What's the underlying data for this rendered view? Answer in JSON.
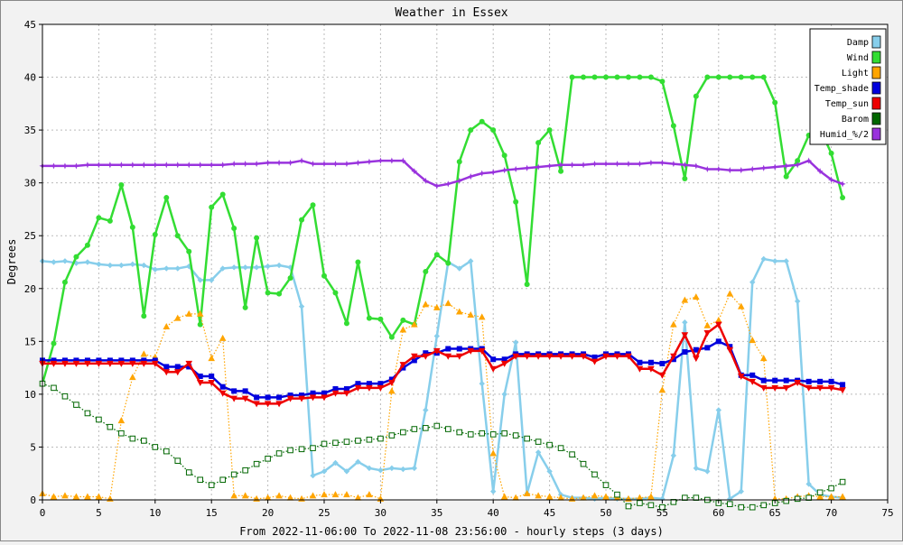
{
  "chart_data": {
    "type": "line",
    "title": "Weather in Essex",
    "xlabel": "From 2022-11-06:00 To 2022-11-08 23:56:00 - hourly steps (3 days)",
    "ylabel": "Degrees",
    "xlim": [
      0,
      75
    ],
    "ylim": [
      0,
      45
    ],
    "x_ticks": [
      0,
      5,
      10,
      15,
      20,
      25,
      30,
      35,
      40,
      45,
      50,
      55,
      60,
      65,
      70,
      75
    ],
    "y_ticks": [
      0,
      5,
      10,
      15,
      20,
      25,
      30,
      35,
      40,
      45
    ],
    "grid": true,
    "legend_position": "top-right",
    "x": [
      0,
      1,
      2,
      3,
      4,
      5,
      6,
      7,
      8,
      9,
      10,
      11,
      12,
      13,
      14,
      15,
      16,
      17,
      18,
      19,
      20,
      21,
      22,
      23,
      24,
      25,
      26,
      27,
      28,
      29,
      30,
      31,
      32,
      33,
      34,
      35,
      36,
      37,
      38,
      39,
      40,
      41,
      42,
      43,
      44,
      45,
      46,
      47,
      48,
      49,
      50,
      51,
      52,
      53,
      54,
      55,
      56,
      57,
      58,
      59,
      60,
      61,
      62,
      63,
      64,
      65,
      66,
      67,
      68,
      69,
      70,
      71
    ],
    "series": [
      {
        "name": "Damp",
        "color": "#87ceeb",
        "marker": "diamond",
        "line": "solid",
        "width": 2.5,
        "values": [
          22.6,
          22.5,
          22.6,
          22.4,
          22.5,
          22.3,
          22.2,
          22.2,
          22.3,
          22.2,
          21.8,
          21.9,
          21.9,
          22.1,
          20.8,
          20.8,
          21.9,
          22.0,
          22.0,
          22.0,
          22.1,
          22.2,
          22.0,
          18.3,
          2.3,
          2.7,
          3.5,
          2.7,
          3.6,
          3.0,
          2.8,
          3.0,
          2.9,
          3.0,
          8.5,
          15.5,
          22.5,
          21.9,
          22.6,
          11.0,
          0.8,
          10.0,
          14.9,
          0.6,
          4.5,
          2.7,
          0.5,
          0.2,
          0.2,
          0.1,
          0.2,
          0.1,
          0.1,
          0.1,
          0.2,
          0.1,
          4.2,
          16.8,
          3.0,
          2.7,
          8.5,
          0.1,
          0.8,
          20.6,
          22.8,
          22.6,
          22.6,
          18.8,
          1.5,
          0.5,
          0.3,
          0.2
        ]
      },
      {
        "name": "Wind",
        "color": "#33dd33",
        "marker": "circle",
        "line": "solid",
        "width": 2.5,
        "values": [
          11.0,
          14.8,
          20.6,
          23.0,
          24.1,
          26.7,
          26.4,
          29.8,
          25.8,
          17.4,
          25.1,
          28.6,
          25.0,
          23.5,
          16.6,
          27.7,
          28.9,
          25.7,
          18.2,
          24.8,
          19.6,
          19.5,
          21.0,
          26.5,
          27.9,
          21.2,
          19.6,
          16.7,
          22.5,
          17.2,
          17.1,
          15.4,
          17.0,
          16.6,
          21.6,
          23.2,
          22.4,
          32.0,
          35.0,
          35.8,
          35.0,
          32.6,
          28.2,
          20.4,
          33.8,
          35.0,
          31.1,
          40.0,
          40.0,
          40.0,
          40.0,
          40.0,
          40.0,
          40.0,
          40.0,
          39.6,
          35.4,
          30.4,
          38.2,
          40.0,
          40.0,
          40.0,
          40.0,
          40.0,
          40.0,
          37.6,
          30.6,
          32.1,
          34.5,
          35.1,
          32.8,
          28.6
        ]
      },
      {
        "name": "Light",
        "color": "#ffa500",
        "marker": "triangle",
        "line": "dotted",
        "width": 1.2,
        "values": [
          0.6,
          0.3,
          0.4,
          0.3,
          0.3,
          0.3,
          0.1,
          7.5,
          11.6,
          13.8,
          13.5,
          16.4,
          17.2,
          17.6,
          17.6,
          13.4,
          15.3,
          0.4,
          0.4,
          0.1,
          0.2,
          0.4,
          0.2,
          0.1,
          0.4,
          0.5,
          0.5,
          0.5,
          0.2,
          0.5,
          0.1,
          10.3,
          16.1,
          16.6,
          18.5,
          18.2,
          18.6,
          17.8,
          17.5,
          17.3,
          4.4,
          0.3,
          0.2,
          0.6,
          0.4,
          0.3,
          0.2,
          0.1,
          0.2,
          0.4,
          0.3,
          0.2,
          0.1,
          0.2,
          0.3,
          10.4,
          16.6,
          18.9,
          19.2,
          16.5,
          17.0,
          19.5,
          18.3,
          15.1,
          13.4,
          0.1,
          0.1,
          0.3,
          0.4,
          0.3,
          0.3,
          0.3
        ]
      },
      {
        "name": "Temp_shade",
        "color": "#0000dd",
        "marker": "square",
        "line": "solid",
        "width": 2.5,
        "values": [
          13.2,
          13.2,
          13.2,
          13.2,
          13.2,
          13.2,
          13.2,
          13.2,
          13.2,
          13.2,
          13.2,
          12.6,
          12.6,
          12.6,
          11.7,
          11.7,
          10.7,
          10.3,
          10.3,
          9.7,
          9.7,
          9.7,
          9.9,
          9.9,
          10.1,
          10.1,
          10.5,
          10.5,
          11.0,
          11.0,
          11.0,
          11.4,
          12.5,
          13.2,
          13.9,
          13.9,
          14.3,
          14.3,
          14.3,
          14.3,
          13.3,
          13.3,
          13.8,
          13.8,
          13.8,
          13.8,
          13.8,
          13.8,
          13.8,
          13.5,
          13.8,
          13.8,
          13.8,
          13.0,
          13.0,
          12.9,
          13.3,
          14.0,
          14.2,
          14.4,
          15.0,
          14.5,
          11.8,
          11.8,
          11.3,
          11.3,
          11.3,
          11.3,
          11.2,
          11.2,
          11.2,
          10.9
        ]
      },
      {
        "name": "Temp_sun",
        "color": "#ee0000",
        "marker": "triangle-down",
        "line": "solid",
        "width": 2.5,
        "values": [
          12.9,
          12.9,
          12.9,
          12.9,
          12.9,
          12.9,
          12.9,
          12.9,
          12.9,
          12.9,
          12.9,
          12.1,
          12.1,
          12.9,
          11.1,
          11.1,
          10.1,
          9.6,
          9.6,
          9.1,
          9.1,
          9.1,
          9.6,
          9.6,
          9.7,
          9.7,
          10.1,
          10.1,
          10.6,
          10.6,
          10.6,
          11.1,
          12.8,
          13.6,
          13.6,
          14.1,
          13.6,
          13.6,
          14.1,
          14.1,
          12.4,
          12.9,
          13.6,
          13.6,
          13.6,
          13.6,
          13.6,
          13.6,
          13.6,
          13.1,
          13.6,
          13.6,
          13.6,
          12.4,
          12.4,
          11.8,
          13.6,
          15.6,
          13.4,
          15.8,
          16.6,
          14.2,
          11.7,
          11.2,
          10.6,
          10.6,
          10.6,
          11.1,
          10.6,
          10.6,
          10.6,
          10.4
        ]
      },
      {
        "name": "Barom",
        "color": "#006600",
        "marker": "open-square",
        "line": "dotted",
        "width": 1.2,
        "values": [
          11.0,
          10.6,
          9.8,
          9.0,
          8.2,
          7.6,
          6.9,
          6.3,
          5.8,
          5.6,
          5.0,
          4.6,
          3.7,
          2.6,
          1.9,
          1.4,
          1.9,
          2.4,
          2.8,
          3.4,
          3.9,
          4.4,
          4.7,
          4.8,
          4.9,
          5.3,
          5.4,
          5.5,
          5.6,
          5.7,
          5.8,
          6.1,
          6.4,
          6.7,
          6.8,
          7.0,
          6.7,
          6.4,
          6.2,
          6.3,
          6.2,
          6.3,
          6.1,
          5.8,
          5.5,
          5.2,
          4.9,
          4.3,
          3.4,
          2.4,
          1.4,
          0.5,
          -0.6,
          -0.3,
          -0.5,
          -0.7,
          -0.2,
          0.2,
          0.2,
          0.0,
          -0.3,
          -0.4,
          -0.7,
          -0.7,
          -0.5,
          -0.3,
          -0.1,
          0.1,
          0.2,
          0.7,
          1.1,
          1.7
        ]
      },
      {
        "name": "Humid_%/2",
        "color": "#9933dd",
        "marker": "star",
        "line": "solid",
        "width": 2.5,
        "values": [
          31.6,
          31.6,
          31.6,
          31.6,
          31.7,
          31.7,
          31.7,
          31.7,
          31.7,
          31.7,
          31.7,
          31.7,
          31.7,
          31.7,
          31.7,
          31.7,
          31.7,
          31.8,
          31.8,
          31.8,
          31.9,
          31.9,
          31.9,
          32.1,
          31.8,
          31.8,
          31.8,
          31.8,
          31.9,
          32.0,
          32.1,
          32.1,
          32.1,
          31.1,
          30.2,
          29.7,
          29.9,
          30.2,
          30.6,
          30.9,
          31.0,
          31.2,
          31.3,
          31.4,
          31.5,
          31.6,
          31.7,
          31.7,
          31.7,
          31.8,
          31.8,
          31.8,
          31.8,
          31.8,
          31.9,
          31.9,
          31.8,
          31.7,
          31.6,
          31.3,
          31.3,
          31.2,
          31.2,
          31.3,
          31.4,
          31.5,
          31.6,
          31.7,
          32.1,
          31.1,
          30.3,
          29.9
        ]
      }
    ]
  }
}
